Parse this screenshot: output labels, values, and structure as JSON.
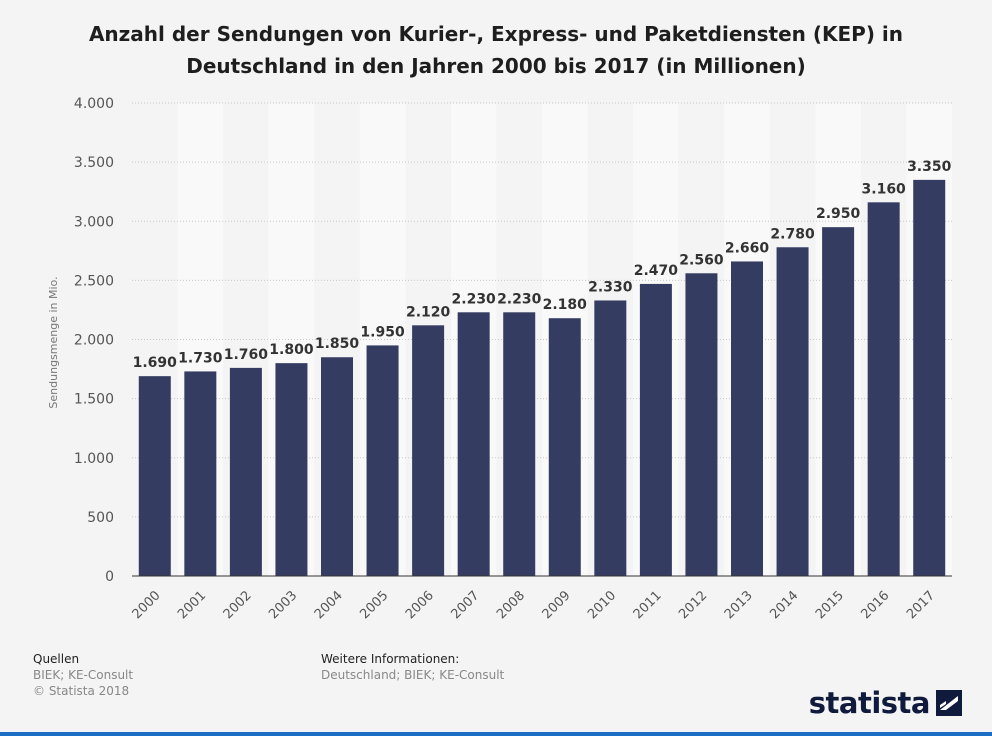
{
  "chart_data": {
    "type": "bar",
    "title_lines": [
      "Anzahl der Sendungen von Kurier-, Express- und Paketdiensten (KEP) in",
      "Deutschland in den Jahren 2000 bis 2017 (in Millionen)"
    ],
    "ylabel": "Sendungsmenge in Mio.",
    "xlabel": "",
    "categories": [
      "2000",
      "2001",
      "2002",
      "2003",
      "2004",
      "2005",
      "2006",
      "2007",
      "2008",
      "2009",
      "2010",
      "2011",
      "2012",
      "2013",
      "2014",
      "2015",
      "2016",
      "2017"
    ],
    "values": [
      1690,
      1730,
      1760,
      1800,
      1850,
      1950,
      2120,
      2230,
      2230,
      2180,
      2330,
      2470,
      2560,
      2660,
      2780,
      2950,
      3160,
      3350
    ],
    "value_labels": [
      "1.690",
      "1.730",
      "1.760",
      "1.800",
      "1.850",
      "1.950",
      "2.120",
      "2.230",
      "2.230",
      "2.180",
      "2.330",
      "2.470",
      "2.560",
      "2.660",
      "2.780",
      "2.950",
      "3.160",
      "3.350"
    ],
    "ylim": [
      0,
      4000
    ],
    "yticks": [
      0,
      500,
      1000,
      1500,
      2000,
      2500,
      3000,
      3500,
      4000
    ],
    "ytick_labels": [
      "0",
      "500",
      "1.000",
      "1.500",
      "2.000",
      "2.500",
      "3.000",
      "3.500",
      "4.000"
    ],
    "grid": true,
    "bar_color": "#343c62",
    "stripe_color": "#f9f9f9"
  },
  "footer": {
    "sources_heading": "Quellen",
    "sources_line1": "BIEK; KE-Consult",
    "sources_line2": "© Statista 2018",
    "info_heading": "Weitere Informationen:",
    "info_line1": "Deutschland; BIEK; KE-Consult"
  },
  "brand": {
    "name": "statista",
    "logo_icon": "statista-logo-icon"
  }
}
